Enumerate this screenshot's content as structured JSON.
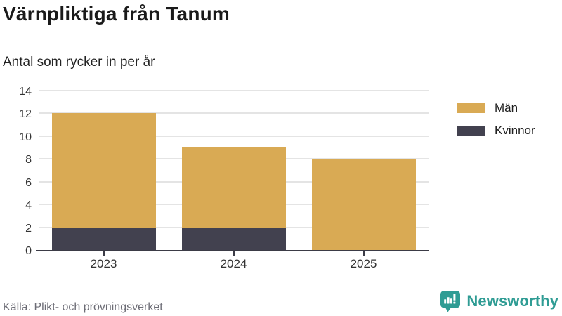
{
  "header": {
    "title": "Värnpliktiga från Tanum",
    "subtitle": "Antal som rycker in per år"
  },
  "chart_data": {
    "type": "bar",
    "stacked": true,
    "title": "Värnpliktiga från Tanum",
    "subtitle": "Antal som rycker in per år",
    "categories": [
      "2023",
      "2024",
      "2025"
    ],
    "series": [
      {
        "name": "Män",
        "color": "#d9aa54",
        "values": [
          10,
          7,
          8
        ]
      },
      {
        "name": "Kvinnor",
        "color": "#42414f",
        "values": [
          2,
          2,
          0
        ]
      }
    ],
    "stack_totals": [
      12,
      9,
      8
    ],
    "xlabel": "",
    "ylabel": "",
    "ylim": [
      0,
      14
    ],
    "yticks": [
      0,
      2,
      4,
      6,
      8,
      10,
      12,
      14
    ],
    "grid": "horizontal",
    "legend_position": "top-right"
  },
  "footer": {
    "source": "Källa: Plikt- och prövningsverket",
    "brand": "Newsworthy"
  },
  "colors": {
    "axis": "#3b3b46",
    "grid": "#e4e4e4",
    "brand_teal": "#2f9c94",
    "text": "#1a1a1a",
    "muted_text": "#6c6c75"
  }
}
